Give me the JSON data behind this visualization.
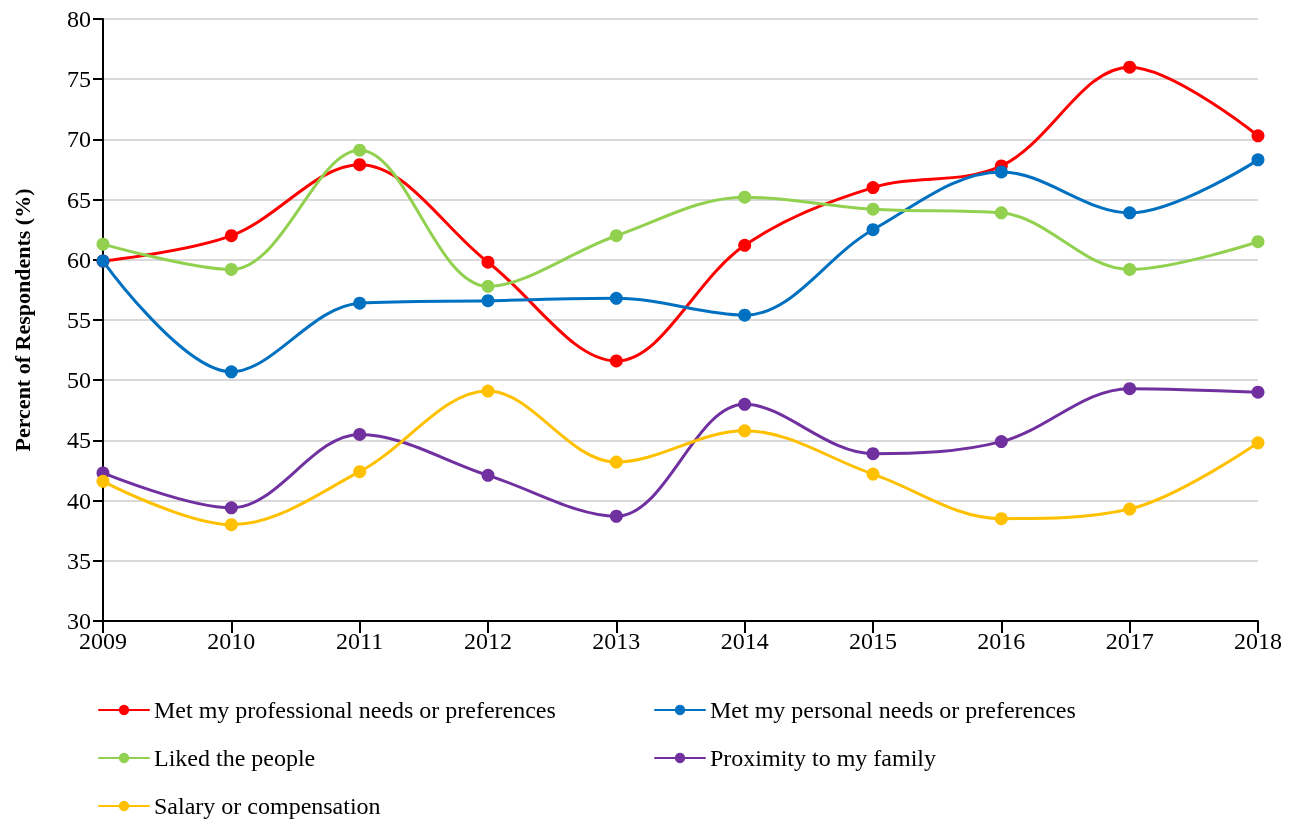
{
  "chart_data": {
    "type": "line",
    "ylabel": "Percent of Respondents (%)",
    "categories": [
      "2009",
      "2010",
      "2011",
      "2012",
      "2013",
      "2014",
      "2015",
      "2016",
      "2017",
      "2018"
    ],
    "series": [
      {
        "name": "Met my professional needs or preferences",
        "color": "#ff0000",
        "values": [
          59.9,
          62.0,
          67.9,
          59.8,
          51.6,
          61.2,
          66.0,
          67.8,
          76.0,
          70.3
        ]
      },
      {
        "name": "Met my personal needs or preferences",
        "color": "#0070c0",
        "values": [
          59.9,
          50.7,
          56.4,
          56.6,
          56.8,
          55.4,
          62.5,
          67.3,
          63.9,
          68.3
        ]
      },
      {
        "name": "Liked the people",
        "color": "#92d050",
        "values": [
          61.3,
          59.2,
          69.1,
          57.8,
          62.0,
          65.2,
          64.2,
          63.9,
          59.2,
          61.5
        ]
      },
      {
        "name": "Proximity to my family",
        "color": "#7030a0",
        "values": [
          42.3,
          39.4,
          45.5,
          42.1,
          38.7,
          48.0,
          43.9,
          44.9,
          49.3,
          49.0
        ]
      },
      {
        "name": "Salary or compensation",
        "color": "#ffc000",
        "values": [
          41.6,
          38.0,
          42.4,
          49.1,
          43.2,
          45.8,
          42.2,
          38.5,
          39.3,
          44.8
        ]
      }
    ],
    "ylim": [
      30,
      80
    ],
    "yticks": [
      30,
      35,
      40,
      45,
      50,
      55,
      60,
      65,
      70,
      75,
      80
    ],
    "grid": "y",
    "legend": "bottom",
    "marker": "circle",
    "line_style": "solid"
  }
}
